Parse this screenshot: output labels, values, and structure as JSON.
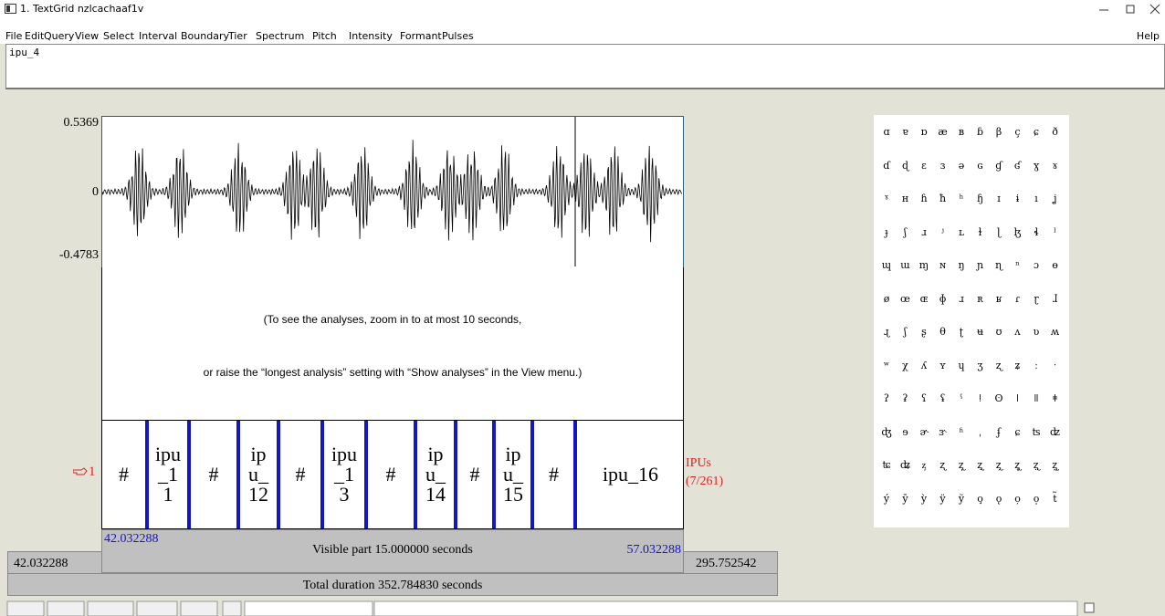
{
  "window": {
    "title": "1. TextGrid nzlcachaaf1v"
  },
  "menu": [
    "File",
    "Edit",
    "Query",
    "View",
    "Select",
    "Interval",
    "Boundary",
    "Tier",
    "Spectrum",
    "Pitch",
    "Intensity",
    "Formant",
    "Pulses"
  ],
  "help": "Help",
  "text_field": "ipu_4",
  "waveform": {
    "max": "0.5369",
    "zero": "0",
    "min": "-0.4783"
  },
  "analysis_message": [
    "(To see the analyses, zoom in to at most 10 seconds,",
    "or raise the “longest analysis” setting with “Show analyses” in the View menu.)"
  ],
  "tier": {
    "number": "1",
    "name": "IPUs",
    "count": "(7/261)",
    "intervals": [
      "#",
      "ipu_11",
      "#",
      "ipu_12",
      "#",
      "ipu_13",
      "#",
      "ipu_14",
      "#",
      "ipu_15",
      "#",
      "ipu_16"
    ]
  },
  "time": {
    "visible_start": "42.032288",
    "visible_label": "Visible part 15.000000 seconds",
    "visible_end": "57.032288",
    "window_start": "42.032288",
    "window_end": "295.752542",
    "total": "Total duration 352.784830 seconds"
  },
  "ipa_chart": [
    [
      "ɑ",
      "ɐ",
      "ɒ",
      "æ",
      "ʙ",
      "ɓ",
      "β",
      "ç",
      "ɕ",
      "ð"
    ],
    [
      "ɗ",
      "ɖ",
      "ɛ",
      "ɜ",
      "ə",
      "ɢ",
      "ɠ",
      "ʛ",
      "ɣ",
      "ɤ"
    ],
    [
      "ˠ",
      "ʜ",
      "ɦ",
      "ħ",
      "ʰ",
      "ɧ",
      "ɪ",
      "ɨ",
      "ı",
      "ʝ"
    ],
    [
      "ɟ",
      "ʃ",
      "ɹ",
      "ʲ",
      "ʟ",
      "ɫ",
      "ɭ",
      "ɮ",
      "ɬ",
      "ˡ"
    ],
    [
      "ɰ",
      "ɯ",
      "ɱ",
      "ɴ",
      "ŋ",
      "ɲ",
      "ɳ",
      "ⁿ",
      "ɔ",
      "ɵ"
    ],
    [
      "ø",
      "œ",
      "ɶ",
      "ɸ",
      "ɹ",
      "ʀ",
      "ʁ",
      "ɾ",
      "ɽ",
      "ɺ"
    ],
    [
      "ɻ",
      "ʃ",
      "ʂ",
      "θ",
      "ʈ",
      "ʉ",
      "ʊ",
      "ʌ",
      "ʋ",
      "ʍ"
    ],
    [
      "ʷ",
      "χ",
      "ʎ",
      "ʏ",
      "ɥ",
      "ʒ",
      "ʐ",
      "ʑ",
      "ː",
      "ˑ"
    ],
    [
      "ʔ",
      "ʡ",
      "ʕ",
      "ʢ",
      "ˤ",
      "ǃ",
      "ʘ",
      "ǀ",
      "ǁ",
      "ǂ"
    ],
    [
      "ʤ",
      "ɘ",
      "ɚ",
      "ɝ",
      "ʱ",
      "ˌ",
      "ʄ",
      "ɕ",
      "ʦ",
      "ʣ"
    ],
    [
      "ʨ",
      "ʥ",
      "ᶎ",
      "ʐ",
      "ʐ̩",
      "ʐ̣",
      "ʐ̦",
      "ʐ̥",
      "ʐ̤",
      "ʐ̰"
    ],
    [
      "ý",
      "ȳ",
      "ỳ",
      "ÿ",
      "ỹ",
      "o̧",
      "ǫ",
      "o̦",
      "o̩",
      "t̃"
    ]
  ]
}
